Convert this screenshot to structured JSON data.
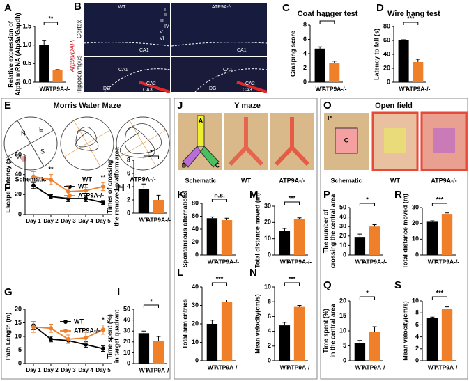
{
  "chart_data": [
    {
      "type": "bar",
      "panel": "A",
      "ylabel": [
        "Relative expression of",
        "Atp9a mRNA (Atp9a/Gapdh)"
      ],
      "categories": [
        "WT",
        "ATP9A-/-"
      ],
      "values": [
        1.0,
        0.32
      ],
      "errors": [
        0.12,
        0.02
      ],
      "colors": [
        "#000000",
        "#f07f2a"
      ],
      "ylim": [
        0,
        1.5
      ],
      "yticks": [
        {
          "value": 0,
          "label": "0.0"
        },
        0.5,
        {
          "value": 1,
          "label": "1.0"
        },
        1.5
      ],
      "significance": "**"
    },
    {
      "type": "bar",
      "panel": "C",
      "title": "Coat hanger test",
      "ylabel": [
        "Grasping score"
      ],
      "categories": [
        "WT",
        "ATP9A-/-"
      ],
      "values": [
        4.7,
        2.7
      ],
      "errors": [
        0.25,
        0.25
      ],
      "colors": [
        "#000000",
        "#f07f2a"
      ],
      "ylim": [
        0,
        8
      ],
      "yticks": [
        0,
        2,
        4,
        6,
        8
      ],
      "significance": "***"
    },
    {
      "type": "bar",
      "panel": "D",
      "title": "Wire hang test",
      "ylabel": [
        "Latency to fall (s)"
      ],
      "categories": [
        "WT",
        "ATP9A-/-"
      ],
      "values": [
        60,
        29
      ],
      "errors": [
        1,
        4
      ],
      "colors": [
        "#000000",
        "#f07f2a"
      ],
      "ylim": [
        0,
        80
      ],
      "yticks": [
        0,
        20,
        40,
        60,
        80
      ],
      "significance": "***"
    },
    {
      "type": "line",
      "panel": "F",
      "ylabel": [
        "Escape Latency (s)"
      ],
      "categories": [
        "Day 1",
        "Day 2",
        "Day 3",
        "Day 4",
        "Day 5"
      ],
      "series": [
        {
          "name": "WT",
          "color": "#000000",
          "values": [
            29,
            18,
            16,
            16,
            12
          ],
          "errors": [
            3,
            2,
            3,
            3,
            2
          ]
        },
        {
          "name": "ATP9A-/-",
          "color": "#f07f2a",
          "values": [
            38,
            35,
            23,
            24,
            28
          ],
          "errors": [
            5,
            5,
            6,
            3,
            4
          ]
        }
      ],
      "ylim": [
        0,
        60
      ],
      "yticks": [
        0,
        20,
        40,
        60
      ],
      "annotations": [
        {
          "text": "**",
          "x": "Day 2"
        },
        {
          "text": "**",
          "x": "Day 5"
        }
      ]
    },
    {
      "type": "bar",
      "panel": "H",
      "ylabel": [
        "Times of crossing",
        "the removed-platform area"
      ],
      "categories": [
        "WT",
        "ATP9A-/-"
      ],
      "values": [
        3.6,
        2.0
      ],
      "errors": [
        0.8,
        0.7
      ],
      "colors": [
        "#000000",
        "#f07f2a"
      ],
      "ylim": [
        0,
        8
      ],
      "yticks": [
        0,
        2,
        4,
        6,
        8
      ],
      "significance": "*"
    },
    {
      "type": "line",
      "panel": "G",
      "ylabel": [
        "Path Length (m)"
      ],
      "categories": [
        "Day 1",
        "Day 2",
        "Day 3",
        "Day 4",
        "Day 5"
      ],
      "series": [
        {
          "name": "WT",
          "color": "#000000",
          "values": [
            14,
            9,
            8.5,
            7,
            5.5
          ],
          "errors": [
            1.5,
            1,
            1,
            1,
            1
          ]
        },
        {
          "name": "ATP9A-/-",
          "color": "#f07f2a",
          "values": [
            13.5,
            13,
            9,
            9.5,
            12.5
          ],
          "errors": [
            2,
            1.5,
            1.5,
            2,
            1.7
          ]
        }
      ],
      "ylim": [
        0,
        20
      ],
      "yticks": [
        0,
        5,
        10,
        15,
        20
      ],
      "annotations": [
        {
          "text": "*",
          "x": "Day 5"
        }
      ]
    },
    {
      "type": "bar",
      "panel": "I",
      "ylabel": [
        "Time spent (%)",
        "in target quadrant"
      ],
      "categories": [
        "WT",
        "ATP9A-/-"
      ],
      "values": [
        28,
        21
      ],
      "errors": [
        2,
        4
      ],
      "colors": [
        "#000000",
        "#f07f2a"
      ],
      "ylim": [
        0,
        50
      ],
      "yticks": [
        0,
        10,
        20,
        30,
        40,
        50
      ],
      "significance": "*"
    },
    {
      "type": "bar",
      "panel": "K",
      "ylabel": [
        "Spontaneous alternations"
      ],
      "categories": [
        "WT",
        "ATP9A-/-"
      ],
      "values": [
        57,
        54
      ],
      "errors": [
        2,
        3
      ],
      "colors": [
        "#000000",
        "#f07f2a"
      ],
      "ylim": [
        0,
        80
      ],
      "yticks": [
        0,
        20,
        40,
        60,
        80
      ],
      "significance": "n.s."
    },
    {
      "type": "bar",
      "panel": "M",
      "ylabel": [
        "Total distance moved (m)"
      ],
      "categories": [
        "WT",
        "ATP9A-/-"
      ],
      "values": [
        15,
        22
      ],
      "errors": [
        1.3,
        0.8
      ],
      "colors": [
        "#000000",
        "#f07f2a"
      ],
      "ylim": [
        0,
        30
      ],
      "yticks": [
        0,
        10,
        20,
        30
      ],
      "significance": "***"
    },
    {
      "type": "bar",
      "panel": "L",
      "ylabel": [
        "Total arm entries"
      ],
      "categories": [
        "WT",
        "ATP9A-/-"
      ],
      "values": [
        20,
        32
      ],
      "errors": [
        2,
        1
      ],
      "colors": [
        "#000000",
        "#f07f2a"
      ],
      "ylim": [
        0,
        40
      ],
      "yticks": [
        0,
        10,
        20,
        30,
        40
      ],
      "significance": "***"
    },
    {
      "type": "bar",
      "panel": "N",
      "ylabel": [
        "Mean velocity(cm/s)"
      ],
      "categories": [
        "WT",
        "ATP9A-/-"
      ],
      "values": [
        4.8,
        7.3
      ],
      "errors": [
        0.4,
        0.2
      ],
      "colors": [
        "#000000",
        "#f07f2a"
      ],
      "ylim": [
        0,
        10
      ],
      "yticks": [
        0,
        2,
        4,
        6,
        8,
        10
      ],
      "significance": "***"
    },
    {
      "type": "bar",
      "panel": "P",
      "ylabel": [
        "The number of",
        "crossing the central area"
      ],
      "categories": [
        "WT",
        "ATP9A-/-"
      ],
      "values": [
        19,
        30
      ],
      "errors": [
        3,
        2
      ],
      "colors": [
        "#000000",
        "#f07f2a"
      ],
      "ylim": [
        0,
        50
      ],
      "yticks": [
        0,
        10,
        20,
        30,
        40,
        50
      ],
      "significance": "*"
    },
    {
      "type": "bar",
      "panel": "R",
      "ylabel": [
        "Total distance moved (m)"
      ],
      "categories": [
        "WT",
        "ATP9A-/-"
      ],
      "values": [
        21,
        26
      ],
      "errors": [
        0.6,
        0.6
      ],
      "colors": [
        "#000000",
        "#f07f2a"
      ],
      "ylim": [
        0,
        30
      ],
      "yticks": [
        0,
        10,
        20,
        30
      ],
      "significance": "***"
    },
    {
      "type": "bar",
      "panel": "Q",
      "ylabel": [
        "Time spent (%)",
        "in the central area"
      ],
      "categories": [
        "WT",
        "ATP9A-/-"
      ],
      "values": [
        6,
        9.6
      ],
      "errors": [
        0.8,
        1.8
      ],
      "colors": [
        "#000000",
        "#f07f2a"
      ],
      "ylim": [
        0,
        20
      ],
      "yticks": [
        0,
        5,
        10,
        15,
        20
      ],
      "significance": "*"
    },
    {
      "type": "bar",
      "panel": "S",
      "ylabel": [
        "Mean velocity(cm/s)"
      ],
      "categories": [
        "WT",
        "ATP9A-/-"
      ],
      "values": [
        7.1,
        8.7
      ],
      "errors": [
        0.2,
        0.3
      ],
      "colors": [
        "#000000",
        "#f07f2a"
      ],
      "ylim": [
        0,
        10
      ],
      "yticks": [
        0,
        2,
        4,
        6,
        8,
        10
      ],
      "significance": "***"
    }
  ],
  "figure_panels": {
    "B": {
      "panel": "B",
      "columns": [
        "WT",
        "ATP9A-/-"
      ],
      "rows": [
        "Cortex",
        "Hippocampus"
      ],
      "stain": "Atp9a/DAPI",
      "layers": [
        "I",
        "II",
        "III",
        "IV",
        "V",
        "VI"
      ],
      "regions": [
        "CA1",
        "CA1",
        "CA1",
        "DG",
        "CA2",
        "CA3",
        "CA1",
        "DG",
        "CA2",
        "CA3"
      ]
    },
    "E": {
      "panel": "E",
      "title": "Morris Water Maze",
      "quadrants": [
        "N",
        "E",
        "S",
        "W"
      ],
      "captions": [
        "Schematic",
        "WT",
        "ATP9A-/-"
      ]
    },
    "J": {
      "panel": "J",
      "title": "Y maze",
      "arms": [
        "A",
        "B",
        "C"
      ],
      "captions": [
        "Schematic",
        "WT",
        "ATP9A-/-"
      ]
    },
    "O": {
      "panel": "O",
      "title": "Open field",
      "zones": [
        "P",
        "C"
      ],
      "captions": [
        "Schematic",
        "WT",
        "ATP9A-/-"
      ]
    }
  }
}
